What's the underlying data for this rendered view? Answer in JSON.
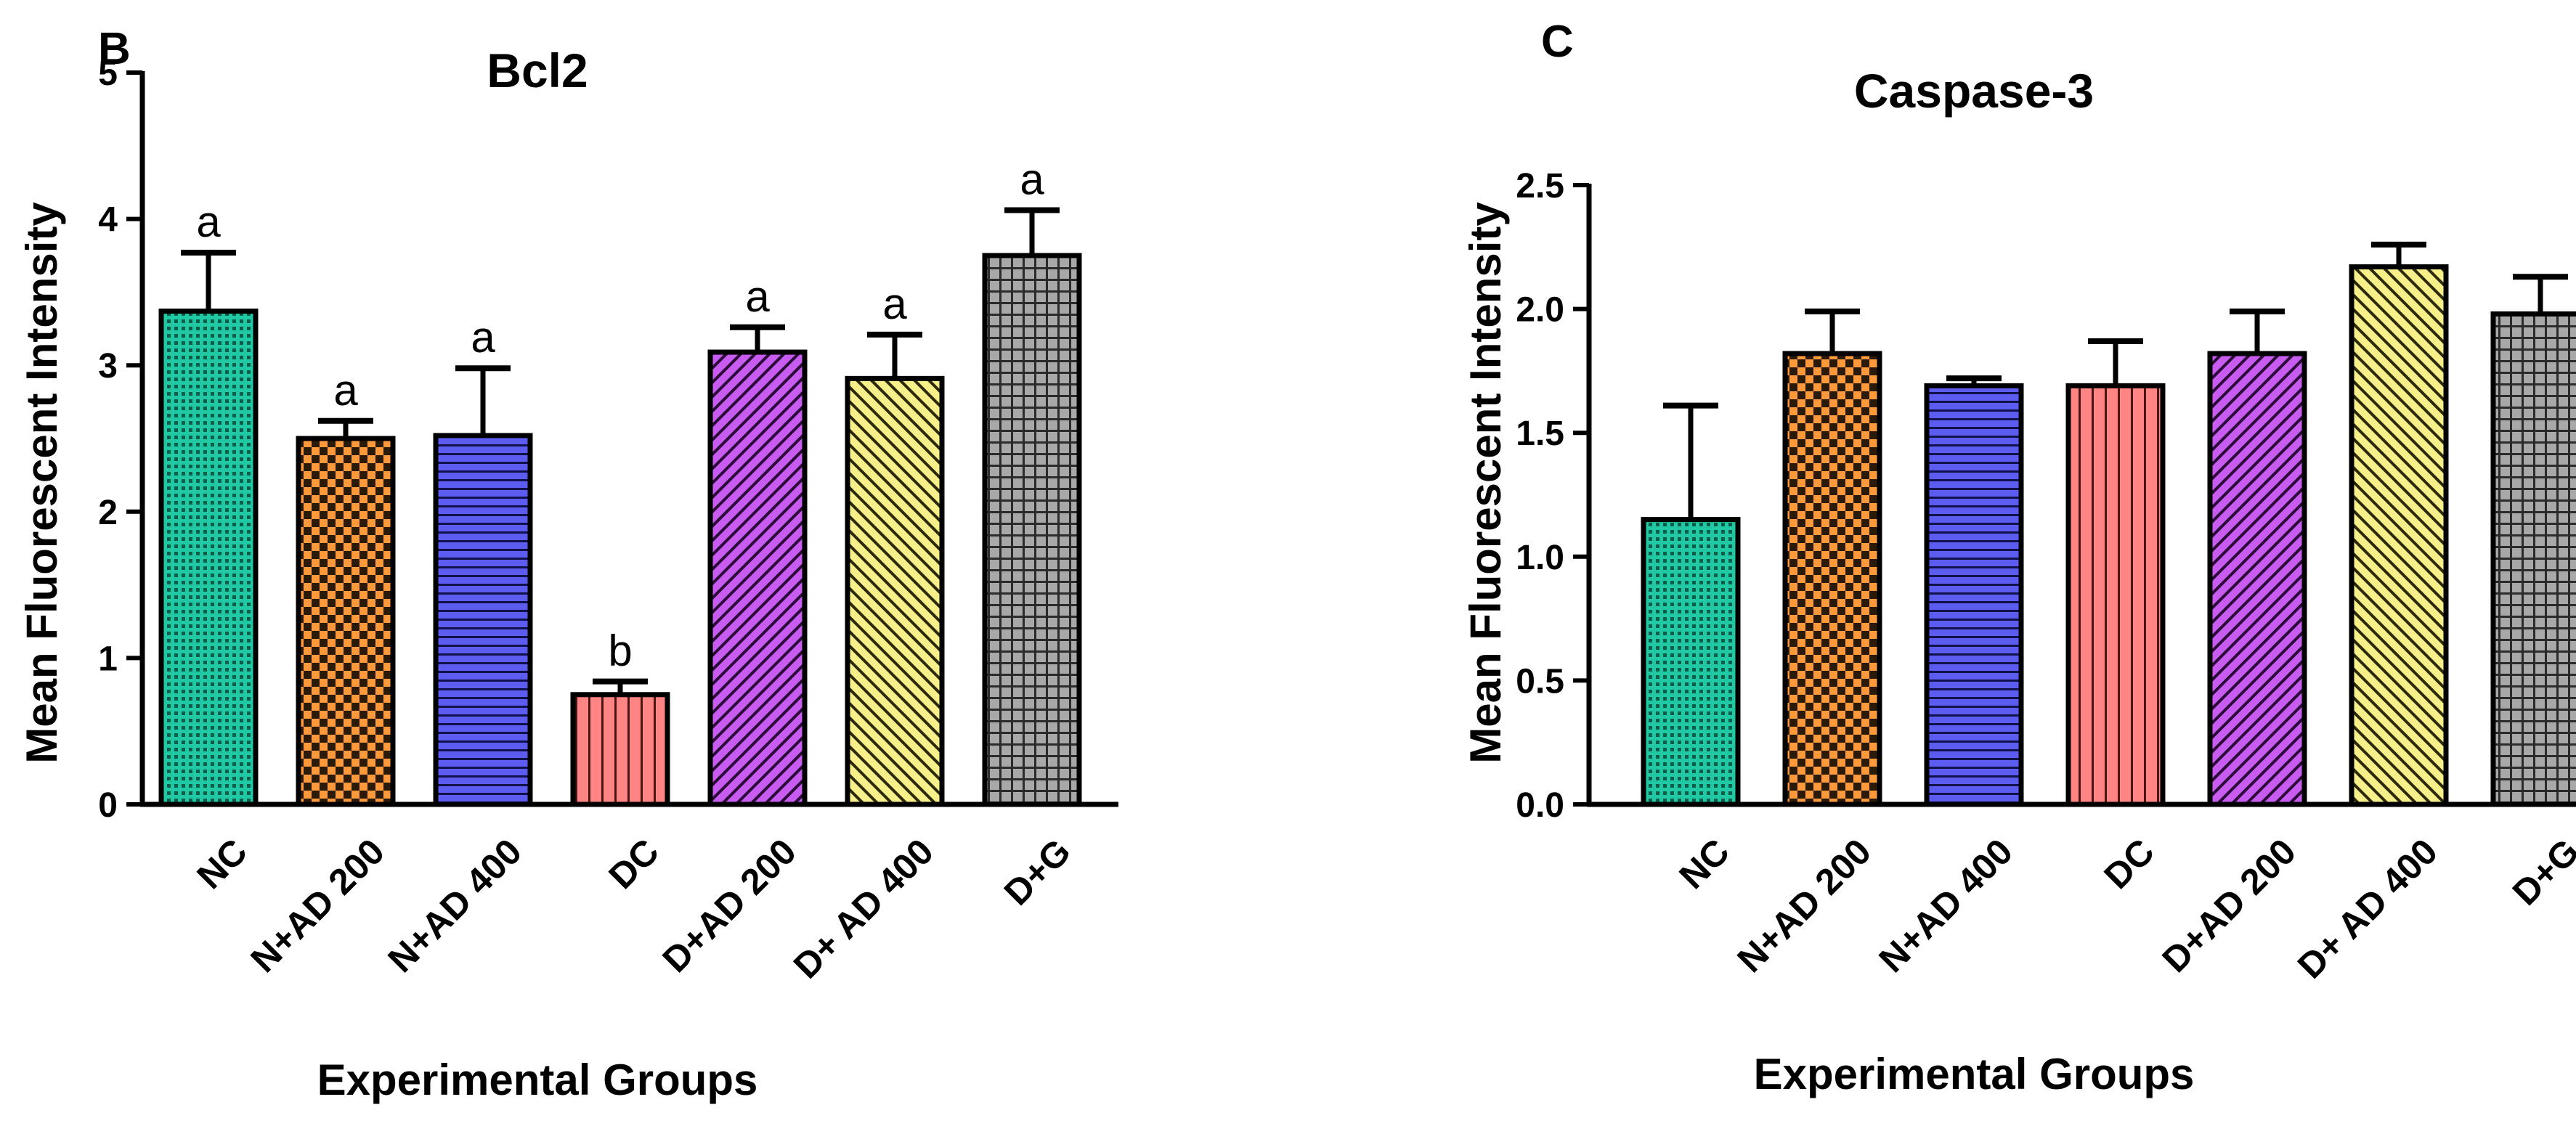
{
  "chart_data": [
    {
      "type": "bar",
      "panel": "B",
      "title": "Bcl2",
      "xlabel": "Experimental Groups",
      "ylabel": "Mean Fluorescent Intensity",
      "ylim": [
        0,
        5
      ],
      "yticks": [
        0,
        1,
        2,
        3,
        4,
        5
      ],
      "ytick_labels": [
        "0",
        "1",
        "2",
        "3",
        "4",
        "5"
      ],
      "categories": [
        "NC",
        "N+AD 200",
        "N+AD 400",
        "DC",
        "D+AD 200",
        "D+ AD 400",
        "D+G"
      ],
      "values": [
        3.37,
        2.5,
        2.52,
        0.75,
        3.09,
        2.91,
        3.75
      ],
      "errors": [
        0.4,
        0.12,
        0.46,
        0.09,
        0.17,
        0.3,
        0.31
      ],
      "annotations": [
        "a",
        "a",
        "a",
        "b",
        "a",
        "a",
        "a"
      ],
      "grid": false,
      "legend": "none"
    },
    {
      "type": "bar",
      "panel": "C",
      "title": "Caspase-3",
      "xlabel": "Experimental Groups",
      "ylabel": "Mean Fluorescent Intensity",
      "ylim": [
        0,
        2.5
      ],
      "yticks": [
        0,
        0.5,
        1.0,
        1.5,
        2.0,
        2.5
      ],
      "ytick_labels": [
        "0.0",
        "0.5",
        "1.0",
        "1.5",
        "2.0",
        "2.5"
      ],
      "categories": [
        "NC",
        "N+AD 200",
        "N+AD 400",
        "DC",
        "D+AD 200",
        "D+ AD 400",
        "D+G"
      ],
      "values": [
        1.15,
        1.82,
        1.69,
        1.69,
        1.82,
        2.17,
        1.98
      ],
      "errors": [
        0.46,
        0.17,
        0.03,
        0.18,
        0.17,
        0.09,
        0.15
      ],
      "annotations": [],
      "grid": false,
      "legend": "none"
    }
  ],
  "bar_styles": [
    {
      "fill": "#20c9a3",
      "pattern": "dots"
    },
    {
      "fill": "#ff9a3c",
      "pattern": "checker"
    },
    {
      "fill": "#5c5cf0",
      "pattern": "hlines"
    },
    {
      "fill": "#ff8585",
      "pattern": "vlines"
    },
    {
      "fill": "#c85cf0",
      "pattern": "diag-right"
    },
    {
      "fill": "#f7f08a",
      "pattern": "diag-left"
    },
    {
      "fill": "#a8a8a8",
      "pattern": "grid"
    }
  ]
}
